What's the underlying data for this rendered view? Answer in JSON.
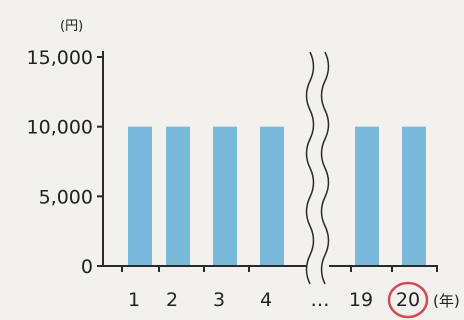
{
  "chart_data": {
    "type": "bar",
    "categories": [
      "1",
      "2",
      "3",
      "4",
      "…",
      "19",
      "20"
    ],
    "values": [
      10000,
      10000,
      10000,
      10000,
      null,
      10000,
      10000
    ],
    "y_unit": "(円)",
    "x_unit": "(年)",
    "ylim": [
      0,
      15000
    ],
    "yticks": [
      {
        "value": 0,
        "label": "0"
      },
      {
        "value": 5000,
        "label": "5,000"
      },
      {
        "value": 10000,
        "label": "10,000"
      },
      {
        "value": 15000,
        "label": "15,000"
      }
    ],
    "axis_break": "between 4 and 19",
    "highlighted_category": "20",
    "grid": false,
    "colors": {
      "bar": "#7ab8dc",
      "axis": "#2a2a2a",
      "highlight": "#d24a55"
    }
  }
}
